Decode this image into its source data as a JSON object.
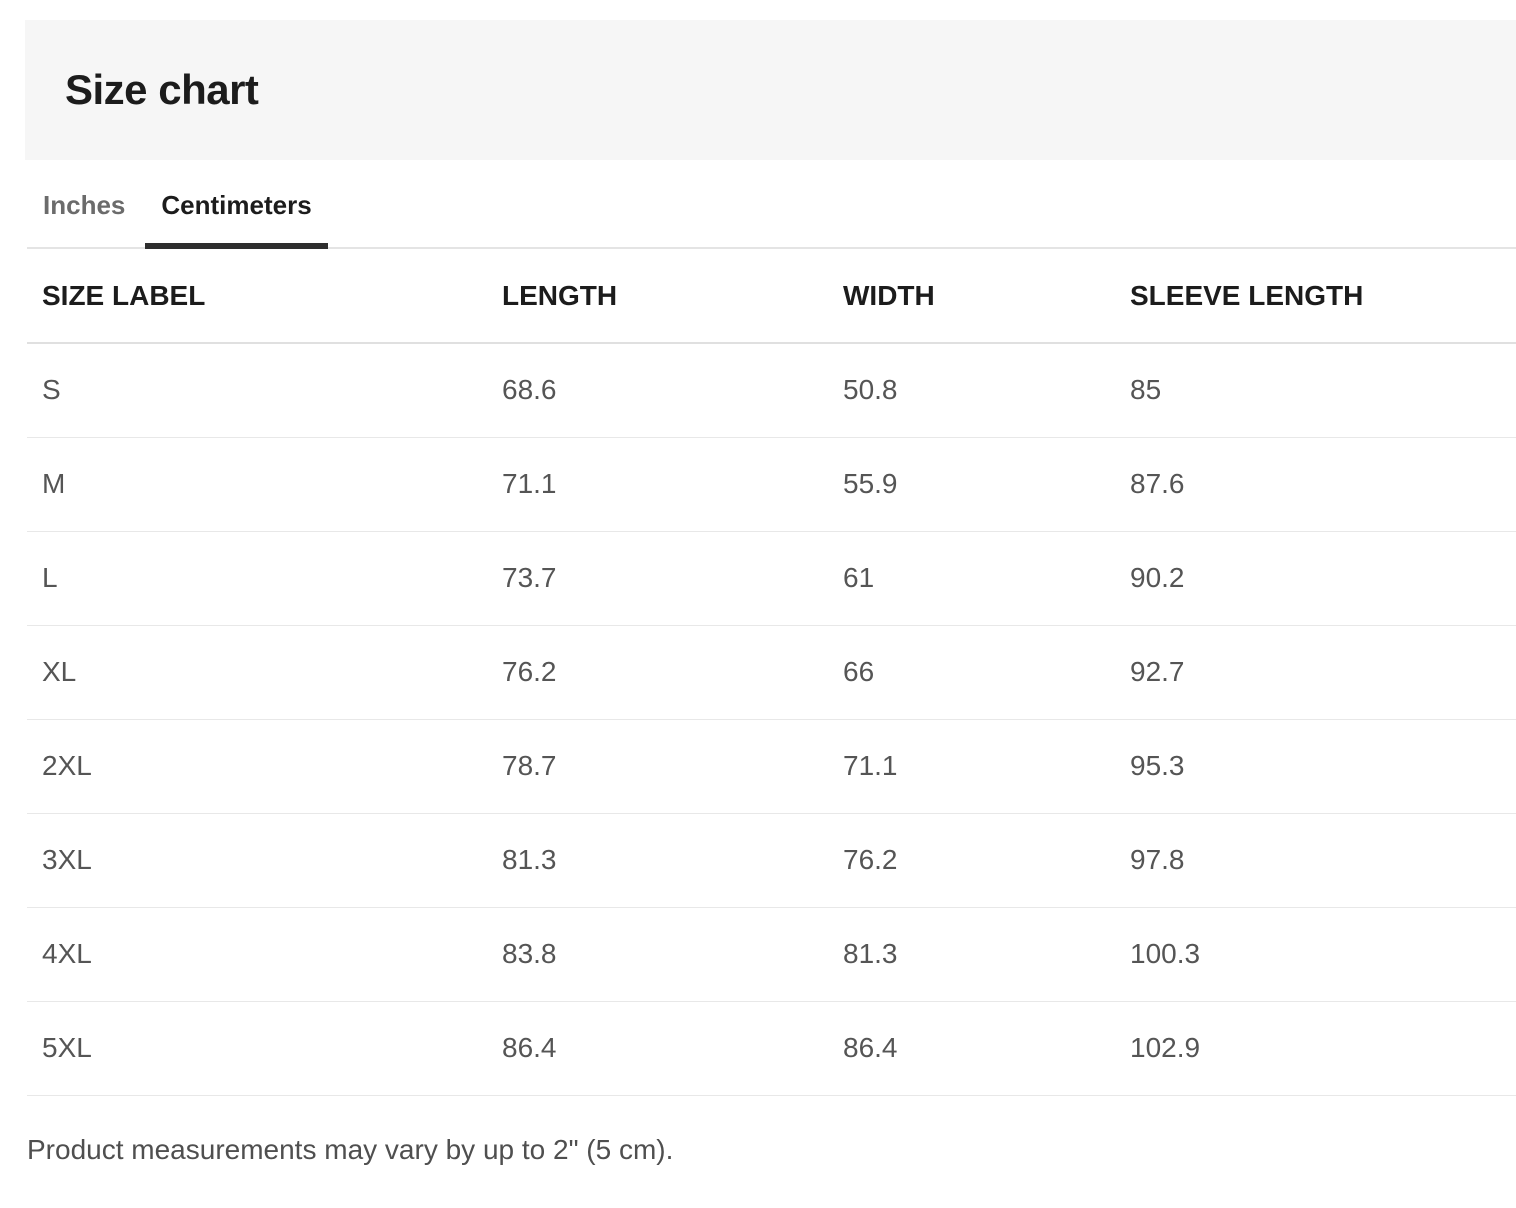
{
  "header": {
    "title": "Size chart"
  },
  "tabs": {
    "items": [
      {
        "label": "Inches",
        "active": false
      },
      {
        "label": "Centimeters",
        "active": true
      }
    ]
  },
  "table": {
    "columns": [
      "SIZE LABEL",
      "LENGTH",
      "WIDTH",
      "SLEEVE LENGTH"
    ],
    "unit": "Centimeters",
    "rows": [
      {
        "size": "S",
        "length": "68.6",
        "width": "50.8",
        "sleeve": "85"
      },
      {
        "size": "M",
        "length": "71.1",
        "width": "55.9",
        "sleeve": "87.6"
      },
      {
        "size": "L",
        "length": "73.7",
        "width": "61",
        "sleeve": "90.2"
      },
      {
        "size": "XL",
        "length": "76.2",
        "width": "66",
        "sleeve": "92.7"
      },
      {
        "size": "2XL",
        "length": "78.7",
        "width": "71.1",
        "sleeve": "95.3"
      },
      {
        "size": "3XL",
        "length": "81.3",
        "width": "76.2",
        "sleeve": "97.8"
      },
      {
        "size": "4XL",
        "length": "83.8",
        "width": "81.3",
        "sleeve": "100.3"
      },
      {
        "size": "5XL",
        "length": "86.4",
        "width": "86.4",
        "sleeve": "102.9"
      }
    ]
  },
  "footer": {
    "note": "Product measurements may vary by up to 2\" (5 cm)."
  },
  "colors": {
    "header_band_bg": "#f6f6f6",
    "active_tab_underline": "#2e2e2e",
    "row_divider": "#e8e8e8",
    "data_text": "#555555"
  }
}
